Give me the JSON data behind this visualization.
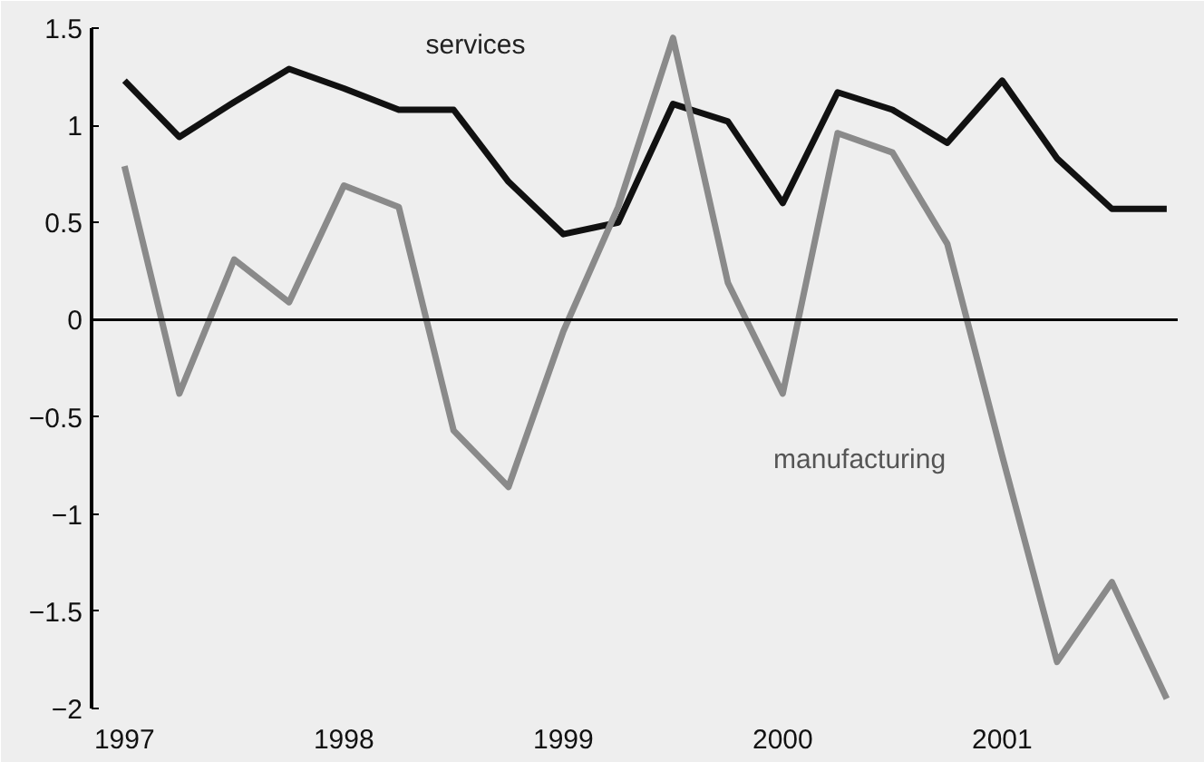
{
  "chart_data": {
    "type": "line",
    "x": [
      1997,
      1997.25,
      1997.5,
      1997.75,
      1998,
      1998.25,
      1998.5,
      1998.75,
      1999,
      1999.25,
      1999.5,
      1999.75,
      2000,
      2000.25,
      2000.5,
      2000.75,
      2001,
      2001.25,
      2001.5,
      2001.75
    ],
    "series": [
      {
        "name": "services",
        "color": "#111111",
        "values": [
          1.23,
          0.94,
          1.12,
          1.29,
          1.19,
          1.08,
          1.08,
          0.71,
          0.44,
          0.5,
          1.11,
          1.02,
          0.6,
          1.17,
          1.08,
          0.91,
          1.23,
          0.83,
          0.57,
          0.57
        ]
      },
      {
        "name": "manufacturing",
        "color": "#8a8a8a",
        "values": [
          0.79,
          -0.38,
          0.31,
          0.09,
          0.69,
          0.58,
          -0.57,
          -0.86,
          -0.06,
          0.58,
          1.45,
          0.19,
          -0.38,
          0.96,
          0.86,
          0.39,
          -0.7,
          -1.76,
          -1.35,
          -1.95
        ]
      }
    ],
    "xlim": [
      1996.85,
      2001.8
    ],
    "xticks": [
      1997,
      1998,
      1999,
      2000,
      2001
    ],
    "ylim": [
      -2,
      1.5
    ],
    "yticks": [
      -2,
      -1.5,
      -1,
      -0.5,
      0,
      0.5,
      1,
      1.5
    ],
    "ref_lines": [
      {
        "axis": "y",
        "value": 0,
        "color": "#000000"
      }
    ],
    "grid": false,
    "marker": "none",
    "line_style": "solid"
  }
}
